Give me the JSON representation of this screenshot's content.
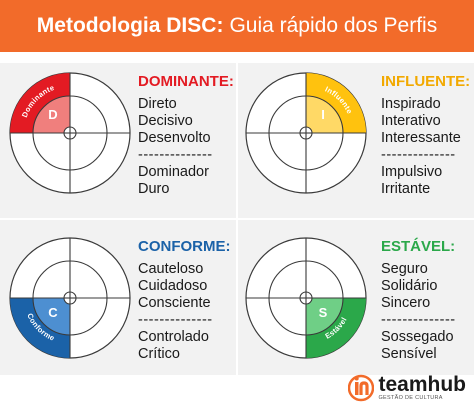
{
  "header": {
    "title_bold": "Metodologia DISC:",
    "title_rest": "Guia rápido dos Perfis"
  },
  "colors": {
    "header_bg": "#f26b2a",
    "dominante": "#e31b23",
    "influente": "#ffc20e",
    "conforme": "#1b62a8",
    "estavel": "#2ba84a"
  },
  "profiles": {
    "dominante": {
      "title": "DOMINANTE:",
      "ring_label": "Dominante",
      "letter": "D",
      "traits": [
        "Direto",
        "Decisivo",
        "Desenvolto"
      ],
      "separator": "--------------",
      "risks": [
        "Dominador",
        "Duro"
      ]
    },
    "influente": {
      "title": "INFLUENTE:",
      "ring_label": "Influente",
      "letter": "I",
      "traits": [
        "Inspirado",
        "Interativo",
        "Interessante"
      ],
      "separator": "--------------",
      "risks": [
        "Impulsivo",
        "Irritante"
      ]
    },
    "conforme": {
      "title": "CONFORME:",
      "ring_label": "Conforme",
      "letter": "C",
      "traits": [
        "Cauteloso",
        "Cuidadoso",
        "Consciente"
      ],
      "separator": "--------------",
      "risks": [
        "Controlado",
        "Crítico"
      ]
    },
    "estavel": {
      "title": "ESTÁVEL:",
      "ring_label": "Estável",
      "letter": "S",
      "traits": [
        "Seguro",
        "Solidário",
        "Sincero"
      ],
      "separator": "--------------",
      "risks": [
        "Sossegado",
        "Sensível"
      ]
    }
  },
  "footer": {
    "brand_name": "teamhub",
    "brand_tagline": "GESTÃO DE CULTURA",
    "logo_icon": "teamhub-logo-icon"
  }
}
